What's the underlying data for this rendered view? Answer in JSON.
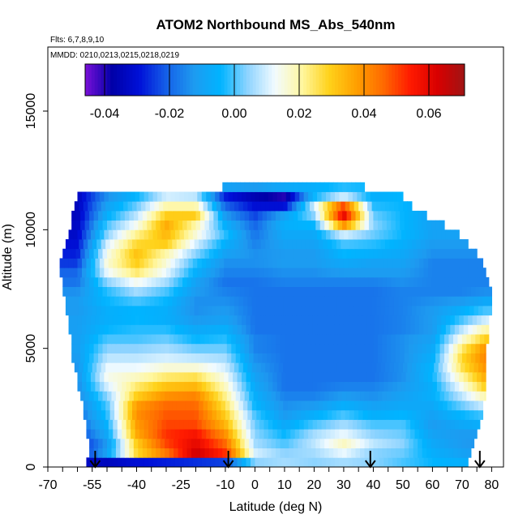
{
  "chart_data": {
    "type": "heatmap",
    "title": "ATOM2 Northbound MS_Abs_540nm",
    "flights_note": "Flts: 6,7,8,9,10",
    "mmdd_note": "MMDD: 0210,0213,0215,0218,0219",
    "xlabel": "Latitude (deg N)",
    "ylabel": "Altitude (m)",
    "xlim": [
      -70,
      84
    ],
    "ylim": [
      0,
      17700
    ],
    "x_ticks": [
      -70,
      -55,
      -40,
      -25,
      -10,
      0,
      10,
      20,
      30,
      40,
      50,
      60,
      70,
      80
    ],
    "x_tick_labels": [
      "-70",
      "-55",
      "-40",
      "-25",
      "-10",
      "0",
      "10",
      "20",
      "30",
      "40",
      "50",
      "60",
      "70",
      "80"
    ],
    "y_ticks": [
      0,
      5000,
      10000,
      15000
    ],
    "y_tick_labels": [
      "0",
      "5000",
      "10000",
      "15000"
    ],
    "colorbar": {
      "range": [
        -0.046,
        0.071
      ],
      "ticks": [
        -0.04,
        -0.02,
        0.0,
        0.02,
        0.04,
        0.06
      ],
      "tick_labels": [
        "-0.04",
        "-0.02",
        "0.00",
        "0.02",
        "0.04",
        "0.06"
      ],
      "colors": [
        "#7a10d8",
        "#0000a8",
        "#0010d8",
        "#1560e8",
        "#1e9af0",
        "#00b4ff",
        "#8fd4ff",
        "#f2fbff",
        "#fff7a0",
        "#ffd21a",
        "#ffa000",
        "#ff6a00",
        "#ff1a00",
        "#d80000",
        "#a01414"
      ]
    },
    "band_altitudes_m": [
      200,
      600,
      1000,
      1400,
      1800,
      2200,
      2600,
      3000,
      3400,
      3800,
      4200,
      4600,
      5000,
      5400,
      5800,
      6200,
      6600,
      7000,
      7400,
      7800,
      8200,
      8600,
      9000,
      9400,
      9800,
      10200,
      10600,
      11000,
      11400,
      11800
    ],
    "band_lat_ranges": [
      [
        -57,
        72
      ],
      [
        -56,
        73
      ],
      [
        -56,
        74
      ],
      [
        -57,
        75
      ],
      [
        -57,
        76
      ],
      [
        -58,
        77
      ],
      [
        -58,
        77
      ],
      [
        -59,
        78
      ],
      [
        -60,
        78
      ],
      [
        -60,
        78
      ],
      [
        -61,
        78
      ],
      [
        -62,
        78
      ],
      [
        -62,
        78
      ],
      [
        -62,
        79
      ],
      [
        -63,
        79
      ],
      [
        -63,
        79
      ],
      [
        -64,
        80
      ],
      [
        -64,
        80
      ],
      [
        -65,
        80
      ],
      [
        -65,
        79
      ],
      [
        -66,
        78
      ],
      [
        -66,
        77
      ],
      [
        -65,
        75
      ],
      [
        -64,
        72
      ],
      [
        -63,
        69
      ],
      [
        -62,
        64
      ],
      [
        -62,
        58
      ],
      [
        -61,
        53
      ],
      [
        -60,
        50
      ],
      [
        -11,
        37
      ]
    ],
    "profile": [
      {
        "lat": -60,
        "vals": [
          -0.032,
          -0.03,
          -0.03,
          -0.025,
          -0.022,
          -0.02,
          -0.018,
          -0.016,
          -0.015,
          -0.014,
          -0.013,
          -0.012,
          -0.011,
          -0.011,
          -0.011,
          -0.011,
          -0.012,
          -0.012,
          -0.014,
          -0.018,
          -0.02,
          -0.025,
          -0.028,
          -0.03,
          -0.032,
          -0.033,
          -0.034,
          -0.034,
          -0.034,
          -0.03
        ]
      },
      {
        "lat": -50,
        "vals": [
          -0.034,
          -0.01,
          -0.012,
          -0.008,
          -0.005,
          -0.002,
          0.0,
          0.004,
          0.01,
          0.014,
          0.012,
          0.008,
          0.004,
          0.0,
          -0.004,
          -0.006,
          -0.006,
          -0.004,
          -0.002,
          0.004,
          0.012,
          0.016,
          0.014,
          0.01,
          0.004,
          0.0,
          -0.006,
          -0.01,
          -0.014,
          -0.01
        ]
      },
      {
        "lat": -40,
        "vals": [
          -0.03,
          0.028,
          0.03,
          0.036,
          0.038,
          0.04,
          0.038,
          0.03,
          0.024,
          0.018,
          0.012,
          0.008,
          0.004,
          0.0,
          -0.002,
          -0.004,
          -0.004,
          0.0,
          0.006,
          0.014,
          0.024,
          0.03,
          0.032,
          0.028,
          0.022,
          0.014,
          0.008,
          0.002,
          -0.004,
          -0.004
        ]
      },
      {
        "lat": -30,
        "vals": [
          -0.028,
          0.044,
          0.05,
          0.052,
          0.05,
          0.048,
          0.046,
          0.04,
          0.032,
          0.024,
          0.016,
          0.01,
          0.006,
          0.002,
          -0.002,
          -0.006,
          -0.006,
          -0.004,
          0.0,
          0.006,
          0.012,
          0.016,
          0.02,
          0.03,
          0.034,
          0.036,
          0.03,
          0.02,
          0.01,
          0.0
        ]
      },
      {
        "lat": -20,
        "vals": [
          -0.026,
          0.064,
          0.06,
          0.056,
          0.05,
          0.048,
          0.046,
          0.042,
          0.034,
          0.026,
          0.016,
          0.008,
          0.002,
          -0.004,
          -0.008,
          -0.012,
          -0.014,
          -0.014,
          -0.012,
          -0.01,
          -0.006,
          -0.002,
          0.004,
          0.01,
          0.016,
          0.02,
          0.03,
          0.02,
          0.008,
          -0.004
        ]
      },
      {
        "lat": -10,
        "vals": [
          -0.024,
          0.052,
          0.046,
          0.04,
          0.034,
          0.03,
          0.026,
          0.022,
          0.018,
          0.014,
          0.01,
          0.006,
          0.002,
          -0.002,
          -0.006,
          -0.01,
          -0.012,
          -0.014,
          -0.016,
          -0.018,
          -0.016,
          -0.014,
          -0.01,
          -0.006,
          -0.002,
          -0.006,
          -0.012,
          -0.02,
          -0.028,
          -0.01
        ]
      },
      {
        "lat": 0,
        "vals": [
          0.004,
          0.01,
          0.006,
          0.004,
          0.002,
          0.0,
          -0.004,
          -0.006,
          -0.008,
          -0.01,
          -0.012,
          -0.014,
          -0.016,
          -0.016,
          -0.018,
          -0.018,
          -0.018,
          -0.018,
          -0.018,
          -0.018,
          -0.016,
          -0.014,
          -0.014,
          -0.016,
          -0.018,
          -0.02,
          -0.024,
          -0.03,
          -0.036,
          -0.012
        ]
      },
      {
        "lat": 10,
        "vals": [
          0.006,
          0.004,
          0.0,
          -0.004,
          -0.008,
          -0.012,
          -0.014,
          -0.016,
          -0.018,
          -0.018,
          -0.018,
          -0.018,
          -0.018,
          -0.018,
          -0.018,
          -0.018,
          -0.018,
          -0.018,
          -0.018,
          -0.016,
          -0.014,
          -0.012,
          -0.012,
          -0.01,
          -0.008,
          -0.006,
          -0.01,
          -0.03,
          -0.04,
          -0.008
        ]
      },
      {
        "lat": 20,
        "vals": [
          0.004,
          0.006,
          0.008,
          0.006,
          0.0,
          -0.006,
          -0.012,
          -0.016,
          -0.018,
          -0.018,
          -0.018,
          -0.018,
          -0.018,
          -0.018,
          -0.018,
          -0.018,
          -0.018,
          -0.018,
          -0.018,
          -0.016,
          -0.014,
          -0.012,
          -0.012,
          -0.01,
          -0.008,
          -0.004,
          0.004,
          0.01,
          -0.004,
          -0.006
        ]
      },
      {
        "lat": 30,
        "vals": [
          0.006,
          0.012,
          0.018,
          0.012,
          0.006,
          0.0,
          -0.006,
          -0.012,
          -0.016,
          -0.018,
          -0.018,
          -0.018,
          -0.018,
          -0.018,
          -0.018,
          -0.018,
          -0.018,
          -0.018,
          -0.018,
          -0.016,
          -0.012,
          -0.008,
          -0.004,
          0.0,
          0.01,
          0.04,
          0.06,
          0.05,
          0.01,
          -0.002
        ]
      },
      {
        "lat": 40,
        "vals": [
          0.004,
          0.004,
          0.008,
          0.004,
          0.0,
          -0.006,
          -0.01,
          -0.014,
          -0.016,
          -0.018,
          -0.018,
          -0.018,
          -0.018,
          -0.018,
          -0.018,
          -0.018,
          -0.018,
          -0.018,
          -0.018,
          -0.016,
          -0.012,
          -0.01,
          -0.006,
          -0.002,
          0.002,
          0.004,
          0.002,
          -0.002,
          -0.006,
          -0.004
        ]
      },
      {
        "lat": 50,
        "vals": [
          0.0,
          0.002,
          0.004,
          0.002,
          0.0,
          -0.004,
          -0.008,
          -0.01,
          -0.012,
          -0.014,
          -0.014,
          -0.014,
          -0.014,
          -0.014,
          -0.016,
          -0.016,
          -0.016,
          -0.016,
          -0.016,
          -0.014,
          -0.012,
          -0.01,
          -0.008,
          -0.006,
          -0.004,
          -0.004,
          -0.004,
          -0.004,
          -0.004,
          -0.004
        ]
      },
      {
        "lat": 60,
        "vals": [
          -0.004,
          -0.006,
          -0.008,
          -0.01,
          -0.012,
          -0.01,
          -0.008,
          -0.006,
          -0.006,
          -0.004,
          -0.004,
          -0.006,
          -0.008,
          -0.01,
          -0.012,
          -0.012,
          -0.012,
          -0.014,
          -0.016,
          -0.016,
          -0.016,
          -0.016,
          -0.014,
          -0.012,
          -0.01,
          -0.01,
          -0.01,
          -0.01,
          -0.01,
          -0.01
        ]
      },
      {
        "lat": 70,
        "vals": [
          -0.006,
          -0.01,
          -0.012,
          -0.012,
          -0.008,
          -0.004,
          0.002,
          0.008,
          0.014,
          0.02,
          0.026,
          0.028,
          0.024,
          0.016,
          0.008,
          0.0,
          -0.006,
          -0.012,
          -0.016,
          -0.016,
          -0.016,
          -0.016,
          -0.014,
          -0.012,
          -0.01,
          -0.01,
          -0.01,
          -0.01,
          -0.01,
          -0.01
        ]
      },
      {
        "lat": 78,
        "vals": [
          -0.006,
          -0.012,
          -0.014,
          -0.012,
          -0.006,
          0.0,
          0.01,
          0.02,
          0.03,
          0.036,
          0.04,
          0.042,
          0.04,
          0.03,
          0.02,
          0.01,
          0.0,
          -0.008,
          -0.014,
          -0.016,
          -0.016,
          -0.016,
          -0.014,
          -0.012,
          -0.01,
          -0.01,
          -0.01,
          -0.01,
          -0.01,
          -0.01
        ]
      }
    ],
    "arrows_lat": [
      -54,
      -9,
      39,
      76
    ],
    "grid": false,
    "legend": "colorbar at top"
  }
}
